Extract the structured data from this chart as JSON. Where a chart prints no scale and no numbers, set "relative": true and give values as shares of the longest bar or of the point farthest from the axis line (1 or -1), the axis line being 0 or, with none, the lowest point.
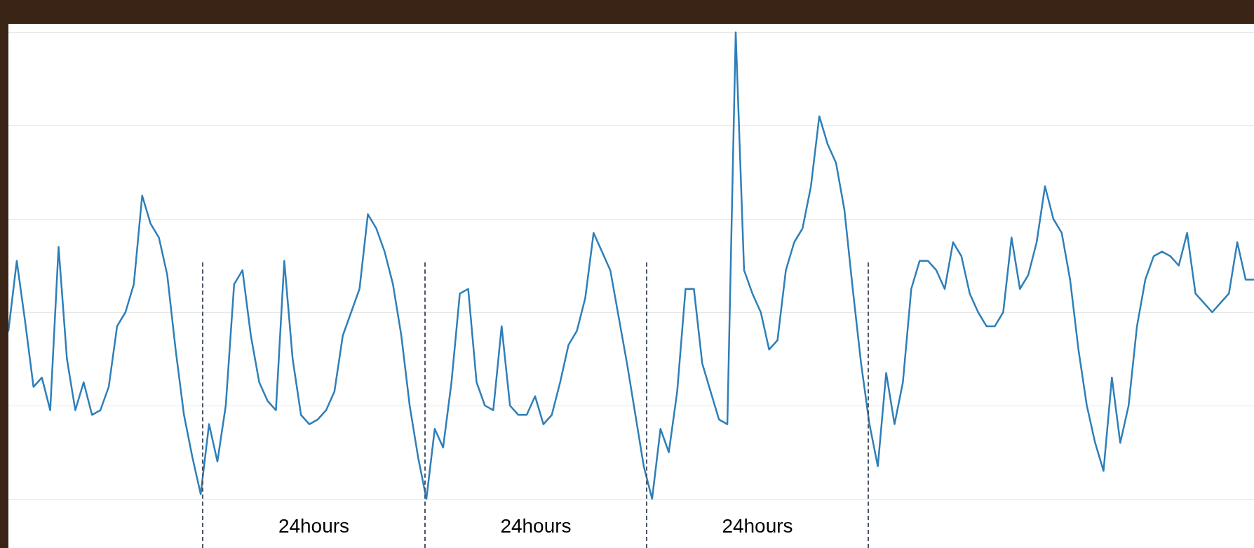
{
  "chart_data": {
    "type": "line",
    "relative": true,
    "grid": "y",
    "legend": false,
    "marker": "none",
    "line_style": "solid",
    "annotations": [
      "24hours",
      "24hours",
      "24hours"
    ],
    "categories": [
      null,
      null,
      null,
      null,
      null,
      null,
      null,
      null,
      null,
      null,
      null,
      null,
      null,
      null,
      null,
      null,
      null,
      null,
      null,
      null,
      null,
      null,
      null,
      null,
      null,
      null,
      null,
      null,
      null,
      null,
      null,
      null,
      null,
      null,
      null,
      null,
      null,
      null,
      null,
      null,
      null,
      null,
      null,
      null,
      null,
      null,
      null,
      null,
      null,
      null,
      null,
      null,
      null,
      null,
      null,
      null,
      null,
      null,
      null,
      null,
      null,
      null,
      null,
      null,
      null,
      null,
      null,
      null,
      null,
      null,
      null,
      null,
      null,
      null,
      null,
      null,
      null,
      null,
      null,
      null,
      null,
      null,
      null,
      null,
      null,
      null,
      null,
      null,
      null,
      null,
      null,
      null,
      null,
      null,
      null,
      null,
      null,
      null,
      null,
      null,
      null,
      null,
      null,
      null,
      null,
      null,
      null,
      null,
      null,
      null,
      null,
      null,
      null,
      null,
      null,
      null,
      null,
      null,
      null,
      null,
      null,
      null,
      null,
      null,
      null,
      null,
      null,
      null,
      null,
      null,
      null,
      null,
      null,
      null,
      null,
      null,
      null,
      null,
      null,
      null,
      null,
      null,
      null,
      null,
      null,
      null,
      null,
      null,
      null,
      null
    ],
    "series": [
      {
        "color": "#2e7fb8",
        "values": [
          0.36,
          0.51,
          0.38,
          0.24,
          0.26,
          0.19,
          0.54,
          0.3,
          0.19,
          0.25,
          0.18,
          0.19,
          0.24,
          0.37,
          0.4,
          0.46,
          0.65,
          0.59,
          0.56,
          0.48,
          0.32,
          0.18,
          0.09,
          0.01,
          0.16,
          0.08,
          0.2,
          0.46,
          0.49,
          0.35,
          0.25,
          0.21,
          0.19,
          0.51,
          0.3,
          0.18,
          0.16,
          0.17,
          0.19,
          0.23,
          0.35,
          0.4,
          0.45,
          0.61,
          0.58,
          0.53,
          0.46,
          0.35,
          0.2,
          0.09,
          0.0,
          0.15,
          0.11,
          0.25,
          0.44,
          0.45,
          0.25,
          0.2,
          0.19,
          0.37,
          0.2,
          0.18,
          0.18,
          0.22,
          0.16,
          0.18,
          0.25,
          0.33,
          0.36,
          0.43,
          0.57,
          0.53,
          0.49,
          0.39,
          0.29,
          0.18,
          0.07,
          0.0,
          0.15,
          0.1,
          0.23,
          0.45,
          0.45,
          0.29,
          0.23,
          0.17,
          0.16,
          1.0,
          0.49,
          0.44,
          0.4,
          0.32,
          0.34,
          0.49,
          0.55,
          0.58,
          0.67,
          0.82,
          0.76,
          0.72,
          0.62,
          0.45,
          0.29,
          0.16,
          0.07,
          0.27,
          0.16,
          0.25,
          0.45,
          0.51,
          0.51,
          0.49,
          0.45,
          0.55,
          0.52,
          0.44,
          0.4,
          0.37,
          0.37,
          0.4,
          0.56,
          0.45,
          0.48,
          0.55,
          0.67,
          0.6,
          0.57,
          0.47,
          0.32,
          0.2,
          0.12,
          0.06,
          0.26,
          0.12,
          0.2,
          0.37,
          0.47,
          0.52,
          0.53,
          0.52,
          0.5,
          0.57,
          0.44,
          0.42,
          0.4,
          0.42,
          0.44,
          0.55,
          0.47,
          0.47
        ]
      }
    ]
  }
}
